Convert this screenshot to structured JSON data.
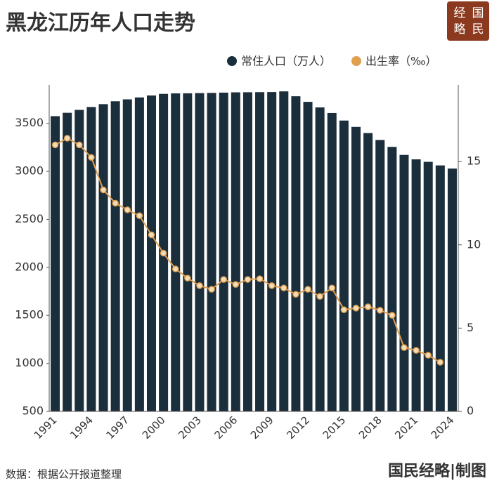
{
  "chart_data": {
    "type": "bar_line",
    "title": "黑龙江历年人口走势",
    "categories": [
      "1991",
      null,
      null,
      "1994",
      null,
      null,
      "1997",
      null,
      null,
      "2000",
      null,
      null,
      "2003",
      null,
      null,
      "2006",
      null,
      null,
      "2009",
      null,
      null,
      "2012",
      null,
      null,
      "2015",
      null,
      null,
      "2018",
      null,
      null,
      "2021",
      null,
      null,
      "2024"
    ],
    "series": [
      {
        "name": "常住人口（万人）",
        "color": "#1b2e3c",
        "type": "bar",
        "values": [
          3575,
          3610,
          3640,
          3670,
          3700,
          3730,
          3750,
          3770,
          3790,
          3807,
          3812,
          3813,
          3815,
          3817,
          3820,
          3823,
          3824,
          3825,
          3826,
          3833,
          3782,
          3724,
          3666,
          3608,
          3529,
          3463,
          3399,
          3327,
          3255,
          3171,
          3125,
          3099,
          3062,
          3029
        ]
      },
      {
        "name": "出生率（‰）",
        "color": "#e0a050",
        "type": "line",
        "axis": "y2",
        "values": [
          16.0,
          16.4,
          16.0,
          15.25,
          13.3,
          12.5,
          12.1,
          11.75,
          10.6,
          9.5,
          8.55,
          8.0,
          7.55,
          7.33,
          7.92,
          7.62,
          7.92,
          7.96,
          7.55,
          7.41,
          7.03,
          7.33,
          6.9,
          7.41,
          6.1,
          6.2,
          6.28,
          6.07,
          5.77,
          3.83,
          3.66,
          3.37,
          2.95,
          null
        ]
      }
    ],
    "ylim": [
      500,
      3900
    ],
    "yticks": [
      500,
      1000,
      1500,
      2000,
      2500,
      3000,
      3500
    ],
    "y2lim": [
      0,
      19.6
    ],
    "y2ticks": [
      0,
      5,
      10,
      15
    ],
    "legend": "top-right"
  },
  "logo": [
    "经",
    "国",
    "略",
    "民"
  ],
  "footer": {
    "source": "数据：根据公开报道整理",
    "credit": "国民经略|制图"
  }
}
